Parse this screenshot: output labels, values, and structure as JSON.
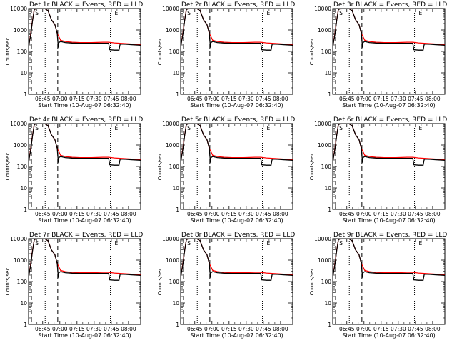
{
  "figure": {
    "panel_titles": [
      "Det 1r BLACK = Events, RED = LLD",
      "Det 2r BLACK = Events, RED = LLD",
      "Det 3r BLACK = Events, RED = LLD",
      "Det 4r BLACK = Events, RED = LLD",
      "Det 5r BLACK = Events, RED = LLD",
      "Det 6r BLACK = Events, RED = LLD",
      "Det 7r BLACK = Events, RED = LLD",
      "Det 8r BLACK = Events, RED = LLD",
      "Det 9r BLACK = Events, RED = LLD"
    ],
    "xlabel": "Start Time (10-Aug-07 06:32:40)",
    "ylabel": "Counts/sec",
    "x_ticks": [
      "06:45",
      "07:00",
      "07:15",
      "07:30",
      "07:45",
      "08:00"
    ],
    "y_ticks": [
      "1",
      "10",
      "100",
      "1000",
      "10000"
    ],
    "markers": [
      "S",
      "E"
    ],
    "colors": {
      "events": "#000000",
      "lld": "#ff0000",
      "axes": "#000000"
    }
  },
  "chart_data": {
    "type": "line",
    "panel_count": 9,
    "layout": "3x3 grid",
    "x_unit": "minutes after 06:32:40 (start time)",
    "xlim": [
      0,
      98
    ],
    "ylim": [
      1,
      10000
    ],
    "y_scale": "log",
    "grid": false,
    "x_tick_values": [
      12.33,
      27.33,
      42.33,
      57.33,
      72.33,
      87.33
    ],
    "dashed_vlines_minutes": [
      2.5,
      25.5
    ],
    "dotted_vlines_minutes": [
      14.5,
      71.5
    ],
    "series": [
      {
        "name": "LLD",
        "color": "#ff0000",
        "x": [
          0,
          2,
          3.5,
          5,
          7,
          10,
          14,
          17,
          20,
          23,
          25,
          28,
          32,
          38,
          45,
          55,
          65,
          70,
          75,
          80,
          85,
          90,
          98
        ],
        "values": [
          170,
          700,
          3000,
          9000,
          10000,
          10000,
          10000,
          8000,
          3000,
          1800,
          700,
          330,
          290,
          270,
          260,
          260,
          270,
          270,
          250,
          240,
          230,
          220,
          210
        ]
      },
      {
        "name": "Events",
        "color": "#000000",
        "x": [
          0,
          2,
          3.5,
          5,
          7,
          10,
          14,
          17,
          20,
          23,
          25,
          26,
          26.5,
          28,
          32,
          38,
          45,
          55,
          65,
          70,
          71,
          75,
          79,
          80,
          85,
          90,
          98
        ],
        "values": [
          160,
          650,
          2800,
          9000,
          10000,
          10000,
          10000,
          8000,
          3000,
          1800,
          700,
          150,
          260,
          290,
          260,
          245,
          240,
          240,
          240,
          240,
          120,
          115,
          115,
          220,
          215,
          205,
          195
        ]
      }
    ]
  }
}
